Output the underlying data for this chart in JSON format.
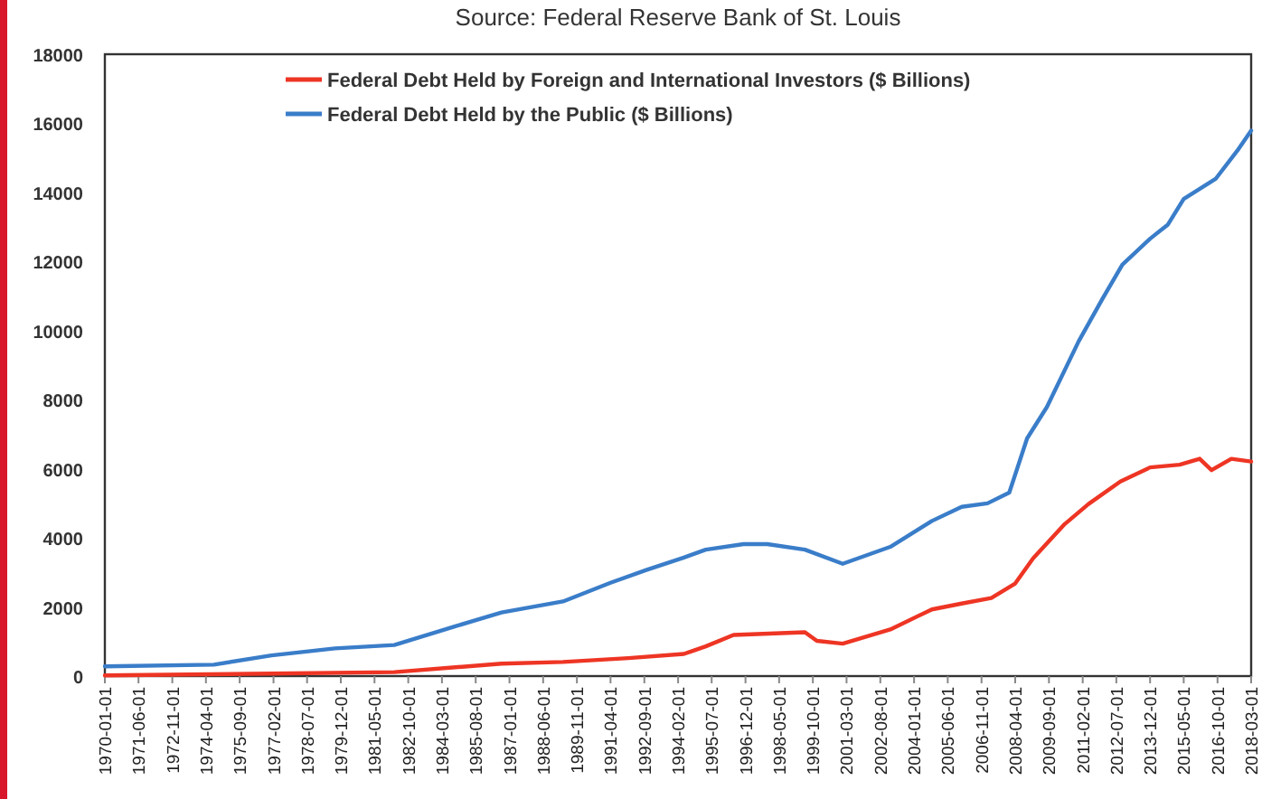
{
  "chart_data": {
    "type": "line",
    "annotations": [
      "Source: Federal Reserve Bank of St. Louis"
    ],
    "xlim": [
      "1970-01-01",
      "2018-03-01"
    ],
    "xticks": [
      "1970-01-01",
      "1971-06-01",
      "1972-11-01",
      "1974-04-01",
      "1975-09-01",
      "1977-02-01",
      "1978-07-01",
      "1979-12-01",
      "1981-05-01",
      "1982-10-01",
      "1984-03-01",
      "1985-08-01",
      "1987-01-01",
      "1988-06-01",
      "1989-11-01",
      "1991-04-01",
      "1992-09-01",
      "1994-02-01",
      "1995-07-01",
      "1996-12-01",
      "1998-05-01",
      "1999-10-01",
      "2001-03-01",
      "2002-08-01",
      "2004-01-01",
      "2005-06-01",
      "2006-11-01",
      "2008-04-01",
      "2009-09-01",
      "2011-02-01",
      "2012-07-01",
      "2013-12-01",
      "2015-05-01",
      "2016-10-01",
      "2018-03-01"
    ],
    "ylim": [
      0,
      18000
    ],
    "yticks": [
      0,
      2000,
      4000,
      6000,
      8000,
      10000,
      12000,
      14000,
      16000,
      18000
    ],
    "grid": false,
    "legend": "top",
    "line_style": "solid",
    "marker": "none",
    "series": [
      {
        "name": "Federal Debt Held by Foreign and International Investors ($ Billions)",
        "color": "#ee3524",
        "x": [
          "1970-01",
          "1977-01",
          "1982-03",
          "1986-09",
          "1989-04",
          "1992-01",
          "1994-05",
          "1995-04",
          "1996-06",
          "1999-06",
          "1999-12",
          "2001-01",
          "2003-01",
          "2004-10",
          "2006-01",
          "2007-04",
          "2008-04",
          "2009-01",
          "2010-05",
          "2011-05",
          "2012-09",
          "2013-12",
          "2015-03",
          "2016-01",
          "2016-07",
          "2017-05",
          "2018-03"
        ],
        "values": [
          20,
          70,
          115,
          360,
          410,
          520,
          640,
          860,
          1190,
          1270,
          1020,
          940,
          1350,
          1930,
          2100,
          2260,
          2680,
          3410,
          4400,
          4980,
          5630,
          6040,
          6120,
          6290,
          5960,
          6290,
          6210
        ]
      },
      {
        "name": "Federal Debt Held by the Public ($ Billions)",
        "color": "#3a7dc9",
        "x": [
          "1970-01",
          "1974-08",
          "1977-01",
          "1979-09",
          "1982-03",
          "1984-09",
          "1986-09",
          "1989-04",
          "1991-04",
          "1992-10",
          "1994-05",
          "1995-04",
          "1996-11",
          "1997-11",
          "1999-06",
          "2001-01",
          "2003-01",
          "2004-10",
          "2006-01",
          "2007-02",
          "2008-01",
          "2008-10",
          "2009-08",
          "2010-12",
          "2011-12",
          "2012-10",
          "2013-12",
          "2014-09",
          "2015-05",
          "2016-09",
          "2017-08",
          "2018-03"
        ],
        "values": [
          280,
          330,
          600,
          800,
          900,
          1430,
          1840,
          2160,
          2700,
          3070,
          3430,
          3660,
          3820,
          3820,
          3660,
          3250,
          3740,
          4490,
          4900,
          5000,
          5310,
          6880,
          7790,
          9690,
          10920,
          11910,
          12660,
          13070,
          13810,
          14390,
          15210,
          15790
        ]
      }
    ]
  }
}
